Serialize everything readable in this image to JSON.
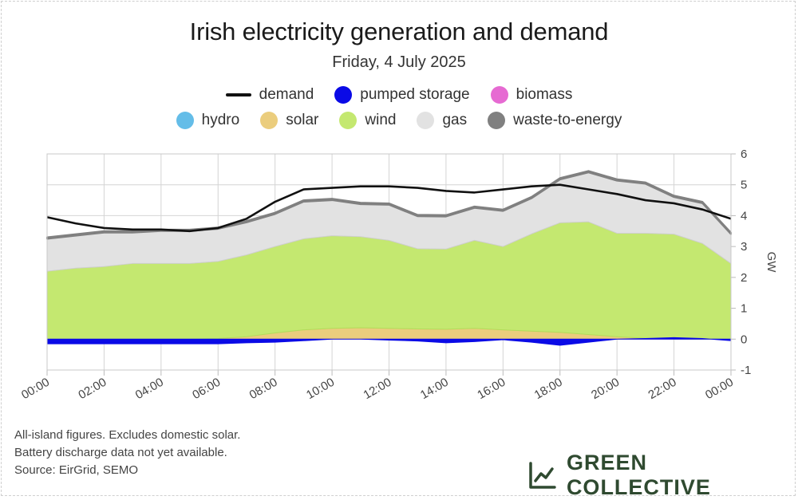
{
  "header": {
    "title": "Irish electricity generation and demand",
    "subtitle": "Friday, 4 July 2025"
  },
  "legend": {
    "row1": [
      {
        "label": "demand",
        "color": "#111111",
        "kind": "line"
      },
      {
        "label": "pumped storage",
        "color": "#0a0ae6",
        "kind": "dot"
      },
      {
        "label": "biomass",
        "color": "#e66ad2",
        "kind": "dot"
      }
    ],
    "row2": [
      {
        "label": "hydro",
        "color": "#64bde8",
        "kind": "dot"
      },
      {
        "label": "solar",
        "color": "#ebcd7d",
        "kind": "dot"
      },
      {
        "label": "wind",
        "color": "#c4e870",
        "kind": "dot"
      },
      {
        "label": "gas",
        "color": "#e2e2e2",
        "kind": "dot"
      },
      {
        "label": "waste-to-energy",
        "color": "#808080",
        "kind": "dot"
      }
    ]
  },
  "chart_data": {
    "type": "area",
    "title": "Irish electricity generation and demand",
    "subtitle": "Friday, 4 July 2025",
    "xlabel": "",
    "ylabel": "GW",
    "ylim": [
      -1,
      6
    ],
    "yticks": [
      "-1",
      "0",
      "1",
      "2",
      "3",
      "4",
      "5",
      "6"
    ],
    "xticks": [
      "00:00",
      "02:00",
      "04:00",
      "06:00",
      "08:00",
      "10:00",
      "12:00",
      "14:00",
      "16:00",
      "18:00",
      "20:00",
      "22:00",
      "00:00"
    ],
    "x_hours": [
      0,
      1,
      2,
      3,
      4,
      5,
      6,
      7,
      8,
      9,
      10,
      11,
      12,
      13,
      14,
      15,
      16,
      17,
      18,
      19,
      20,
      21,
      22,
      23,
      24
    ],
    "series": [
      {
        "name": "pumped storage",
        "color": "#0a0ae6",
        "values": [
          -0.15,
          -0.15,
          -0.15,
          -0.15,
          -0.15,
          -0.15,
          -0.15,
          -0.12,
          -0.1,
          -0.05,
          0.0,
          0.0,
          -0.03,
          -0.06,
          -0.12,
          -0.08,
          -0.02,
          -0.1,
          -0.2,
          -0.1,
          0.0,
          0.02,
          0.05,
          0.02,
          -0.05
        ]
      },
      {
        "name": "solar",
        "color": "#ebcd7d",
        "values": [
          0.0,
          0.0,
          0.0,
          0.0,
          0.0,
          0.0,
          0.02,
          0.08,
          0.2,
          0.3,
          0.35,
          0.37,
          0.35,
          0.33,
          0.32,
          0.35,
          0.3,
          0.26,
          0.22,
          0.15,
          0.08,
          0.03,
          0.0,
          0.0,
          0.0
        ]
      },
      {
        "name": "wind",
        "color": "#c4e870",
        "values": [
          2.2,
          2.3,
          2.35,
          2.45,
          2.45,
          2.45,
          2.5,
          2.65,
          2.8,
          2.95,
          3.0,
          2.95,
          2.85,
          2.6,
          2.6,
          2.85,
          2.7,
          3.15,
          3.55,
          3.65,
          3.35,
          3.4,
          3.4,
          3.1,
          2.45
        ]
      },
      {
        "name": "gas",
        "color": "#e2e2e2",
        "values": [
          1.05,
          1.05,
          1.1,
          1.0,
          1.05,
          1.05,
          1.05,
          1.05,
          1.05,
          1.2,
          1.15,
          1.05,
          1.15,
          1.05,
          1.05,
          1.05,
          1.15,
          1.15,
          1.4,
          1.6,
          1.7,
          1.6,
          1.2,
          1.3,
          0.95
        ]
      },
      {
        "name": "waste-to-energy",
        "color": "#808080",
        "values": [
          0.05,
          0.05,
          0.05,
          0.05,
          0.05,
          0.05,
          0.05,
          0.05,
          0.05,
          0.05,
          0.05,
          0.05,
          0.05,
          0.05,
          0.05,
          0.05,
          0.05,
          0.05,
          0.05,
          0.05,
          0.05,
          0.05,
          0.05,
          0.05,
          0.05
        ]
      },
      {
        "name": "demand",
        "color": "#111111",
        "kind": "line",
        "values": [
          3.95,
          3.75,
          3.6,
          3.55,
          3.55,
          3.5,
          3.6,
          3.9,
          4.45,
          4.85,
          4.9,
          4.95,
          4.95,
          4.9,
          4.8,
          4.75,
          4.85,
          4.95,
          5.0,
          4.85,
          4.7,
          4.5,
          4.4,
          4.2,
          3.9
        ]
      }
    ]
  },
  "notes": [
    "All-island figures. Excludes domestic solar.",
    "Battery discharge data not yet available.",
    "Source: EirGrid, SEMO"
  ],
  "brand": {
    "name": "GREEN COLLECTIVE",
    "icon": "line-chart-icon",
    "color": "#2f4a30"
  }
}
